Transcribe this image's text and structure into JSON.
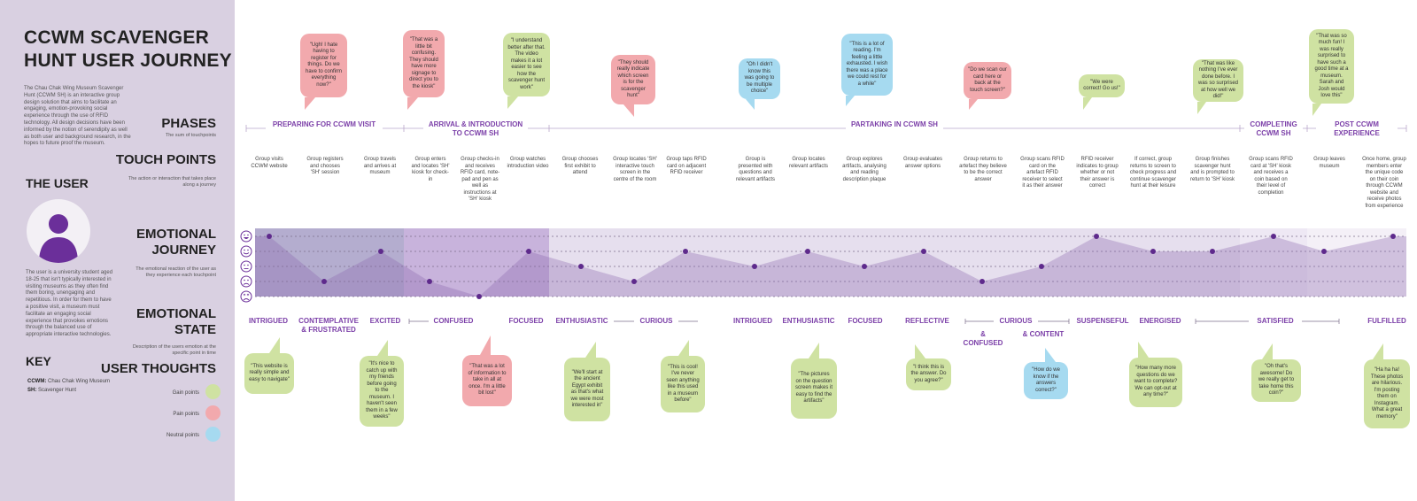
{
  "title": "CCWM SCAVENGER HUNT USER JOURNEY",
  "intro_text": "The Chau Chak Wing Museum Scavenger Hunt (CCWM SH) is an interactive group design solution that aims to facilitate an engaging, emotion-provoking social experience through the use of RFID technology. All design decisions have been informed by the notion of serendipity as well as both user and background research, in the hopes to future proof the museum.",
  "user": {
    "heading": "THE USER",
    "description": "The user is a university student aged 18-25 that isn't typically interested in visiting museums as they often find them boring, unengaging and repetitious. In order for them to have a positive visit, a museum must facilitate an engaging social experience that provokes emotions through the balanced use of appropriate interactive technologies."
  },
  "key": {
    "heading": "KEY",
    "items": [
      {
        "abbr": "CCWM:",
        "text": "Chau Chak Wing Museum"
      },
      {
        "abbr": "SH:",
        "text": "Scavenger Hunt"
      }
    ]
  },
  "rows": {
    "phases": {
      "title": "PHASES",
      "sub": "The sum of touchpoints"
    },
    "touch_points": {
      "title": "TOUCH POINTS",
      "sub": "The action or interaction that takes place along a journey"
    },
    "emotional_journey": {
      "title": "EMOTIONAL JOURNEY",
      "sub": "The emotional reaction of the user as they experience each touchpoint"
    },
    "emotional_state": {
      "title": "EMOTIONAL STATE",
      "sub": "Description of the users emotion at the specific point in time"
    },
    "user_thoughts": {
      "title": "USER THOUGHTS"
    }
  },
  "legend": [
    {
      "label": "Gain points",
      "color": "#cfe2a2"
    },
    {
      "label": "Pain points",
      "color": "#f2a9ad"
    },
    {
      "label": "Neutral points",
      "color": "#a6daf0"
    }
  ],
  "phases": [
    {
      "label": "PREPARING FOR CCWM VISIT"
    },
    {
      "label": "ARRIVAL & INTRODUCTION TO CCWM SH"
    },
    {
      "label": "PARTAKING IN CCWM SH"
    },
    {
      "label": "COMPLETING CCWM SH"
    },
    {
      "label": "POST CCWM EXPERIENCE"
    }
  ],
  "touch_points": [
    "Group visits CCWM website",
    "Group registers and chooses 'SH' session",
    "Group travels and arrives at museum",
    "Group enters and locates 'SH' kiosk for check-in",
    "Group checks-in and receives RFID card, note-pad and pen as well as instructions at 'SH' kiosk",
    "Group watches introduction video",
    "Group chooses first exhibit to attend",
    "Group locates 'SH' interactive touch screen in the centre of the room",
    "Group taps RFID card on adjacent RFID receiver",
    "Group is presented with questions and relevant artifacts",
    "Group locates relevant artifacts",
    "Group explores artifacts, analysing and reading description plaque",
    "Group evaluates answer options",
    "Group returns to artefact they believe to be the correct answer",
    "Group scans RFID card on the artefact RFID receiver to select it as their answer",
    "RFID receiver indicates to group whether or not their answer is correct",
    "If correct, group returns to screen to check progress and continue scavenger hunt at their leisure",
    "Group finishes scavenger hunt and is prompted to return to 'SH' kiosk",
    "Group scans RFID card at 'SH' kiosk and receives a coin based on their level of completion",
    "Group leaves museum",
    "Once home, group members enter the unique code on their coin through CCWM website and receive photos from experience"
  ],
  "emotional_states": [
    "INTRIGUED",
    "CONTEMPLATIVE & FRUSTRATED",
    "EXCITED",
    "CONFUSED",
    "FOCUSED",
    "ENTHUSIASTIC",
    "CURIOUS",
    "INTRIGUED",
    "ENTHUSIASTIC",
    "FOCUSED",
    "REFLECTIVE",
    "CURIOUS",
    "& CONFUSED",
    "& CONTENT",
    "SUSPENSEFUL",
    "ENERGISED",
    "SATISFIED",
    "FULFILLED"
  ],
  "emotion_levels": [
    5,
    2,
    4,
    2,
    1,
    4,
    3,
    2,
    4,
    3,
    4,
    3,
    4,
    2,
    3,
    5,
    4,
    4,
    5,
    4,
    5
  ],
  "top_thoughts": [
    {
      "text": "\"Ugh! I hate having to register for things. Do we have to confirm everything now?\"",
      "type": "pain"
    },
    {
      "text": "\"That was a little bit confusing. They should have more signage to direct you to the kiosk\"",
      "type": "pain"
    },
    {
      "text": "\"I understand better after that. The video makes it a lot easier to see how the scavenger hunt work\"",
      "type": "gain"
    },
    {
      "text": "\"They should really indicate which screen is for the scavenger hunt\"",
      "type": "pain"
    },
    {
      "text": "\"Oh I didn't know this was going to be multiple choice\"",
      "type": "neutral"
    },
    {
      "text": "\"This is a lot of reading. I'm feeling a little exhausted. I wish there was a place we could rest for a while\"",
      "type": "neutral"
    },
    {
      "text": "\"Do we scan our card here or back at the touch screen?\"",
      "type": "pain"
    },
    {
      "text": "\"We were correct! Go us!\"",
      "type": "gain"
    },
    {
      "text": "\"That was like nothing I've ever done before. I was so surprised at how well we did!\"",
      "type": "gain"
    },
    {
      "text": "\"That was so much fun! I was really surprised to have such a good time at a museum. Sarah and Josh would love this\"",
      "type": "gain"
    }
  ],
  "bottom_thoughts": [
    {
      "text": "\"This website is really simple and easy to navigate\"",
      "type": "gain"
    },
    {
      "text": "\"It's nice to catch up with my friends before going to the museum. I haven't seen them in a few weeks\"",
      "type": "gain"
    },
    {
      "text": "\"That was a lot of information to take in all at once. I'm a little bit lost\"",
      "type": "pain"
    },
    {
      "text": "\"We'll start at the ancient Egypt exhibit as that's what we were most interested in\"",
      "type": "gain"
    },
    {
      "text": "\"This is cool! I've never seen anything like this used in a museum before\"",
      "type": "gain"
    },
    {
      "text": "\"The pictures on the question screen makes it easy to find the artifacts\"",
      "type": "gain"
    },
    {
      "text": "\"I think this is the answer. Do you agree?\"",
      "type": "gain"
    },
    {
      "text": "\"How do we know if the answers correct?\"",
      "type": "neutral"
    },
    {
      "text": "\"How many more questions do we want to complete? We can opt-out at any time?\"",
      "type": "gain"
    },
    {
      "text": "\"Oh that's awesome! Do we really get to take home this coin?\"",
      "type": "gain"
    },
    {
      "text": "\"Ha ha ha! These photos are hilarious. I'm posting them on Instagram. What a great memory\"",
      "type": "gain"
    }
  ],
  "colors": {
    "sidebar": "#d9d0e1",
    "accent": "#7b3fa8",
    "gain": "#cfe2a2",
    "pain": "#f2a9ad",
    "neutral": "#a6daf0",
    "dot": "#5e2a8c"
  },
  "icons": [
    "user-avatar-icon",
    "very-happy-face-icon",
    "happy-face-icon",
    "neutral-face-icon",
    "sad-face-icon",
    "very-sad-face-icon"
  ]
}
